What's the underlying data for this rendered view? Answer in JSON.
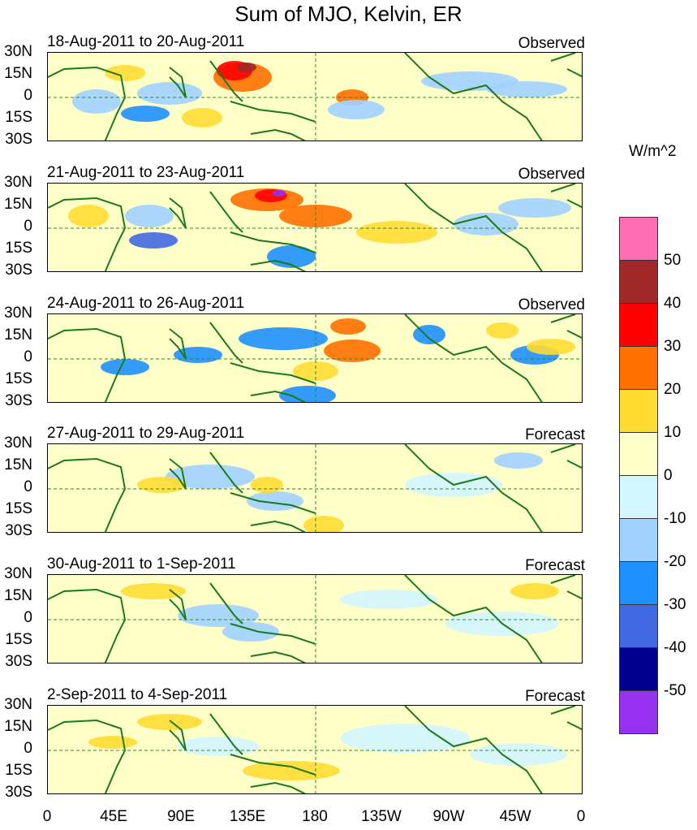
{
  "title": "Sum of MJO, Kelvin, ER",
  "units": "W/m^2",
  "y_tick_labels": [
    "30N",
    "15N",
    "0",
    "15S",
    "30S"
  ],
  "x_tick_labels": [
    "0",
    "45E",
    "90E",
    "135E",
    "180",
    "135W",
    "90W",
    "45W",
    "0"
  ],
  "panels": [
    {
      "title": "18-Aug-2011 to 20-Aug-2011",
      "status": "Observed"
    },
    {
      "title": "21-Aug-2011 to 23-Aug-2011",
      "status": "Observed"
    },
    {
      "title": "24-Aug-2011 to 26-Aug-2011",
      "status": "Observed"
    },
    {
      "title": "27-Aug-2011 to 29-Aug-2011",
      "status": "Forecast"
    },
    {
      "title": "30-Aug-2011 to 1-Sep-2011",
      "status": "Forecast"
    },
    {
      "title": "2-Sep-2011 to 4-Sep-2011",
      "status": "Forecast"
    }
  ],
  "colorbar": {
    "colors": [
      "#ff6eb4",
      "#a02828",
      "#ff0000",
      "#ff7000",
      "#ffdc32",
      "#ffffc8",
      "#d2f5ff",
      "#a0d2ff",
      "#1e90ff",
      "#4169e1",
      "#000090",
      "#9632f0"
    ],
    "labels": [
      "50",
      "40",
      "30",
      "20",
      "10",
      "0",
      "-10",
      "-20",
      "-30",
      "-40",
      "-50"
    ]
  },
  "colors": {
    "background_field": "#ffffc8",
    "coastline": "#1a7a1a",
    "reference_lines": "#2a8a2a"
  }
}
